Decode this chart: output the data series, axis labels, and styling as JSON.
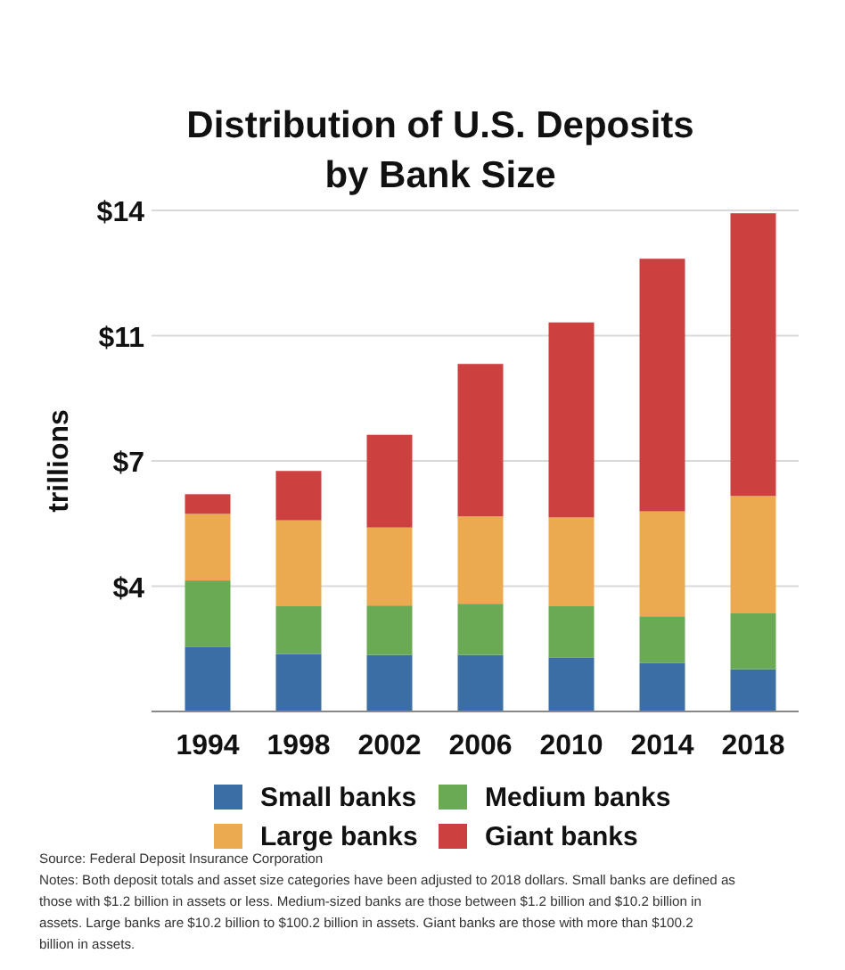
{
  "chart_data": {
    "type": "bar",
    "stacked": true,
    "title": "Distribution of U.S. Deposits\nby Bank Size",
    "ylabel": "trillions",
    "categories": [
      "1994",
      "1998",
      "2002",
      "2006",
      "2010",
      "2014",
      "2018"
    ],
    "series": [
      {
        "name": "Small banks",
        "color": "#3a6ea5",
        "values": [
          1.81,
          1.6,
          1.58,
          1.58,
          1.51,
          1.36,
          1.18
        ]
      },
      {
        "name": "Medium banks",
        "color": "#6aaa55",
        "values": [
          1.85,
          1.34,
          1.38,
          1.43,
          1.43,
          1.3,
          1.56
        ]
      },
      {
        "name": "Large banks",
        "color": "#ecaa50",
        "values": [
          1.86,
          2.4,
          2.18,
          2.44,
          2.48,
          2.93,
          3.28
        ]
      },
      {
        "name": "Giant banks",
        "color": "#cc4040",
        "values": [
          0.55,
          1.38,
          2.59,
          4.26,
          5.45,
          7.06,
          7.9
        ]
      }
    ],
    "ylim": [
      0,
      14
    ],
    "yticks": [
      {
        "value": 3.5,
        "label": "$4"
      },
      {
        "value": 7,
        "label": "$7"
      },
      {
        "value": 10.5,
        "label": "$11"
      },
      {
        "value": 14,
        "label": "$14"
      }
    ],
    "grid": "y",
    "legend": "bottom",
    "annotations": [
      "Source: Federal Deposit Insurance Corporation",
      "Notes: Both deposit totals and asset size categories have been adjusted to 2018 dollars.  Small banks are defined as those with $1.2 billion in assets or less.  Medium-sized banks are those between $1.2 billion and $10.2 billion in assets. Large banks are $10.2 billion to $100.2 billion in assets.  Giant banks are those with more than $100.2 billion in assets."
    ]
  }
}
